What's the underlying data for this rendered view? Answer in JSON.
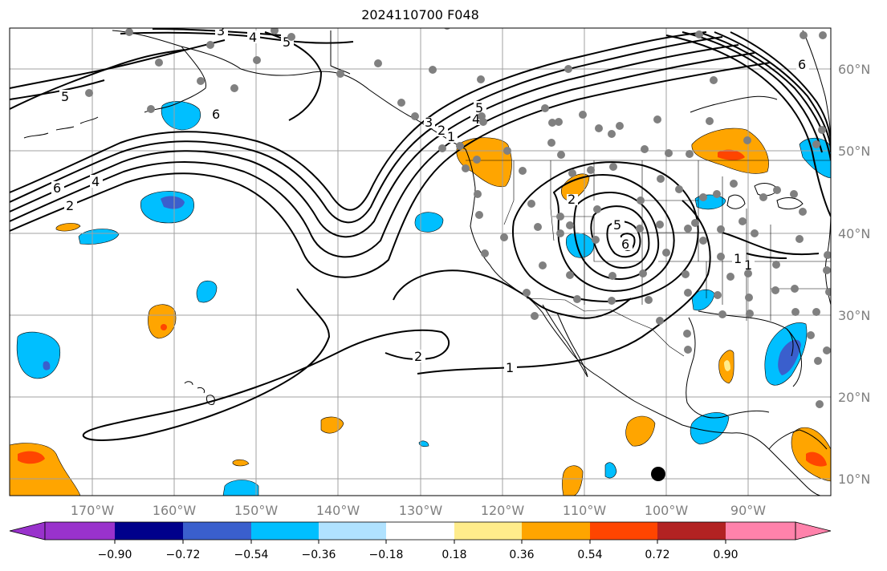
{
  "title": "2024110700 F048",
  "map": {
    "projection": "PlateCarree",
    "lon_range": [
      -180,
      -80
    ],
    "lat_range": [
      7,
      64
    ],
    "gridlines": true,
    "lon_ticks": [
      "170°W",
      "160°W",
      "150°W",
      "140°W",
      "130°W",
      "120°W",
      "110°W",
      "100°W",
      "90°W"
    ],
    "lat_ticks": [
      "10°N",
      "20°N",
      "30°N",
      "40°N",
      "50°N",
      "60°N"
    ],
    "contour_labels": [
      "3",
      "4",
      "5",
      "5",
      "6",
      "6",
      "4",
      "2",
      "5",
      "4",
      "3",
      "2",
      "1",
      "2",
      "1",
      "5",
      "6",
      "1",
      "1",
      "2",
      "6"
    ]
  },
  "colorbar": {
    "orientation": "horizontal",
    "extend": "both",
    "colors": [
      "#9932cc",
      "#00008b",
      "#3a5fcd",
      "#00bfff",
      "#b0e2ff",
      "#ffffff",
      "#ffec8b",
      "#ffa500",
      "#ff4500",
      "#b22222",
      "#ff82ab"
    ],
    "tick_labels": [
      "−0.90",
      "−0.72",
      "−0.54",
      "−0.36",
      "−0.18",
      "0.18",
      "0.36",
      "0.54",
      "0.72",
      "0.90"
    ]
  },
  "legend_colors": {
    "land_outline": "#000000",
    "gridline": "#a0a0a0",
    "station_dot": "#808080",
    "marker": "#000000"
  }
}
